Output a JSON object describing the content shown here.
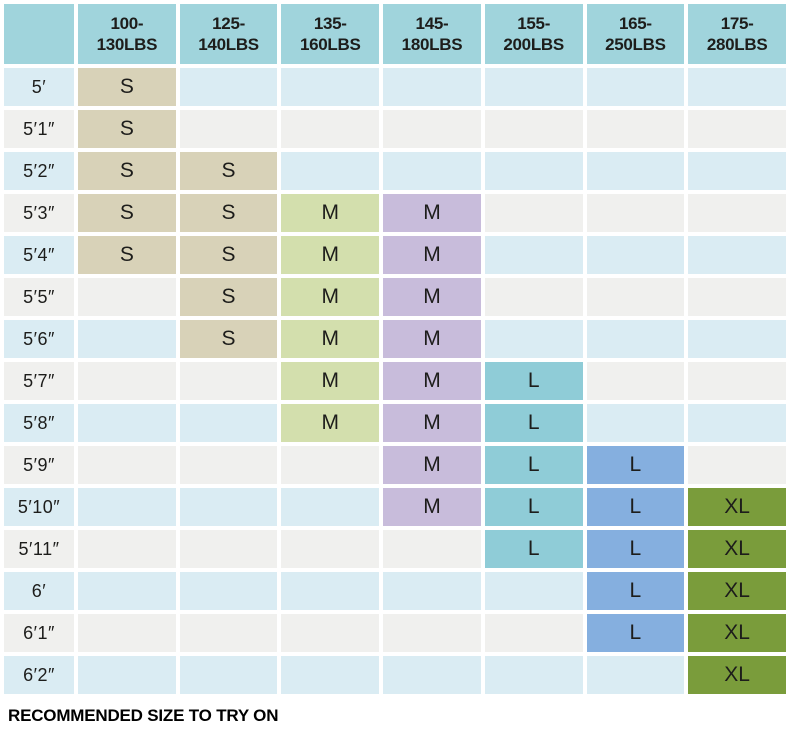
{
  "chart_data": {
    "type": "table",
    "title": "",
    "footer": "RECOMMENDED SIZE TO TRY ON",
    "columns": [
      {
        "label": "100-\n130LBS",
        "weight_range": "100-130LBS",
        "highlight_color": "#d8d2b8"
      },
      {
        "label": "125-\n140LBS",
        "weight_range": "125-140LBS",
        "highlight_color": "#d8d2b8"
      },
      {
        "label": "135-\n160LBS",
        "weight_range": "135-160LBS",
        "highlight_color": "#d3dfad"
      },
      {
        "label": "145-\n180LBS",
        "weight_range": "145-180LBS",
        "highlight_color": "#c8bcdb"
      },
      {
        "label": "155-\n200LBS",
        "weight_range": "155-200LBS",
        "highlight_color": "#8fccd7"
      },
      {
        "label": "165-\n250LBS",
        "weight_range": "165-250LBS",
        "highlight_color": "#85afdf"
      },
      {
        "label": "175-\n280LBS",
        "weight_range": "175-280LBS",
        "highlight_color": "#7a9c3b"
      }
    ],
    "rows": [
      {
        "height": "5′",
        "cells": [
          "S",
          "",
          "",
          "",
          "",
          "",
          ""
        ]
      },
      {
        "height": "5′1″",
        "cells": [
          "S",
          "",
          "",
          "",
          "",
          "",
          ""
        ]
      },
      {
        "height": "5′2″",
        "cells": [
          "S",
          "S",
          "",
          "",
          "",
          "",
          ""
        ]
      },
      {
        "height": "5′3″",
        "cells": [
          "S",
          "S",
          "M",
          "M",
          "",
          "",
          ""
        ]
      },
      {
        "height": "5′4″",
        "cells": [
          "S",
          "S",
          "M",
          "M",
          "",
          "",
          ""
        ]
      },
      {
        "height": "5′5″",
        "cells": [
          "",
          "S",
          "M",
          "M",
          "",
          "",
          ""
        ]
      },
      {
        "height": "5′6″",
        "cells": [
          "",
          "S",
          "M",
          "M",
          "",
          "",
          ""
        ]
      },
      {
        "height": "5′7″",
        "cells": [
          "",
          "",
          "M",
          "M",
          "L",
          "",
          ""
        ]
      },
      {
        "height": "5′8″",
        "cells": [
          "",
          "",
          "M",
          "M",
          "L",
          "",
          ""
        ]
      },
      {
        "height": "5′9″",
        "cells": [
          "",
          "",
          "",
          "M",
          "L",
          "L",
          ""
        ]
      },
      {
        "height": "5′10″",
        "cells": [
          "",
          "",
          "",
          "M",
          "L",
          "L",
          "XL"
        ]
      },
      {
        "height": "5′11″",
        "cells": [
          "",
          "",
          "",
          "",
          "L",
          "L",
          "XL"
        ]
      },
      {
        "height": "6′",
        "cells": [
          "",
          "",
          "",
          "",
          "",
          "L",
          "XL"
        ]
      },
      {
        "height": "6′1″",
        "cells": [
          "",
          "",
          "",
          "",
          "",
          "L",
          "XL"
        ]
      },
      {
        "height": "6′2″",
        "cells": [
          "",
          "",
          "",
          "",
          "",
          "",
          "XL"
        ]
      }
    ]
  },
  "colors": {
    "header_bg": "#a0d4dc",
    "row_odd": "#daecf3",
    "row_even": "#f0f0ee",
    "text": "#1d1d1b",
    "size_s": "#d8d2b8",
    "size_m_green": "#d3dfad",
    "size_m_purple": "#c8bcdb",
    "size_l_teal": "#8fccd7",
    "size_l_blue": "#85afdf",
    "size_xl_olive": "#7a9c3b"
  },
  "footer": {
    "note": "RECOMMENDED SIZE TO TRY ON"
  }
}
